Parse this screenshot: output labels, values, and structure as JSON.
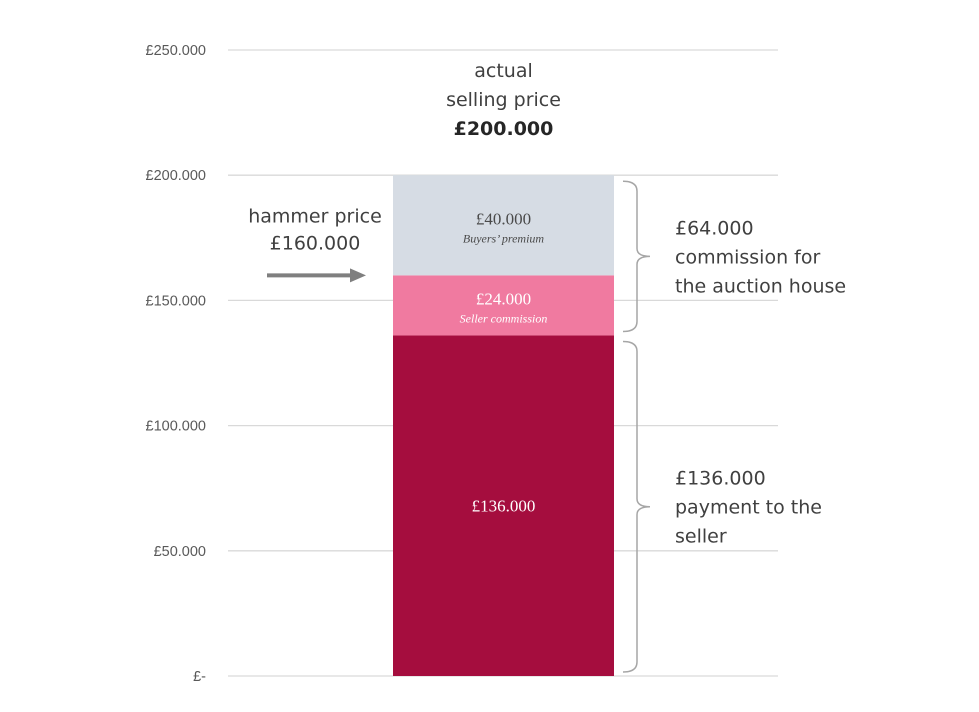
{
  "chart_data": {
    "type": "bar",
    "stacked": true,
    "ylim": [
      0,
      250000
    ],
    "yticks": [
      {
        "value": 0,
        "label": "£-"
      },
      {
        "value": 50000,
        "label": "£50.000"
      },
      {
        "value": 100000,
        "label": "£100.000"
      },
      {
        "value": 150000,
        "label": "£150.000"
      },
      {
        "value": 200000,
        "label": "£200.000"
      },
      {
        "value": 250000,
        "label": "£250.000"
      }
    ],
    "grid": true,
    "segments": [
      {
        "name": "",
        "value": 136000,
        "start": 0,
        "label": "£136.000",
        "sublabel": "",
        "color": "#a50d3e",
        "text_color": "#ffffff"
      },
      {
        "name": "Seller commission",
        "value": 24000,
        "start": 136000,
        "label": "£24.000",
        "sublabel": "Seller commission",
        "color": "#f07aa0",
        "text_color": "#ffffff"
      },
      {
        "name": "Buyers’ premium",
        "value": 40000,
        "start": 160000,
        "label": "£40.000",
        "sublabel": "Buyers’ premium",
        "color": "#d6dce4",
        "text_color": "#4a4a4a"
      }
    ],
    "annotations": {
      "top": {
        "lines": [
          "actual",
          "selling price"
        ],
        "value_line": "£200.000",
        "at_value": 200000
      },
      "hammer": {
        "lines": [
          "hammer price",
          "£160.000"
        ],
        "at_value": 160000,
        "arrow_color": "#7f7f7f"
      },
      "brackets": [
        {
          "from": 136000,
          "to": 200000,
          "lines": [
            "£64.000",
            "commission for",
            "the auction house"
          ]
        },
        {
          "from": 0,
          "to": 136000,
          "lines": [
            "£136.000",
            "payment to the",
            "seller"
          ]
        }
      ]
    },
    "colors": {
      "grid": "#d9d9d9",
      "bracket": "#a6a6a6"
    }
  }
}
